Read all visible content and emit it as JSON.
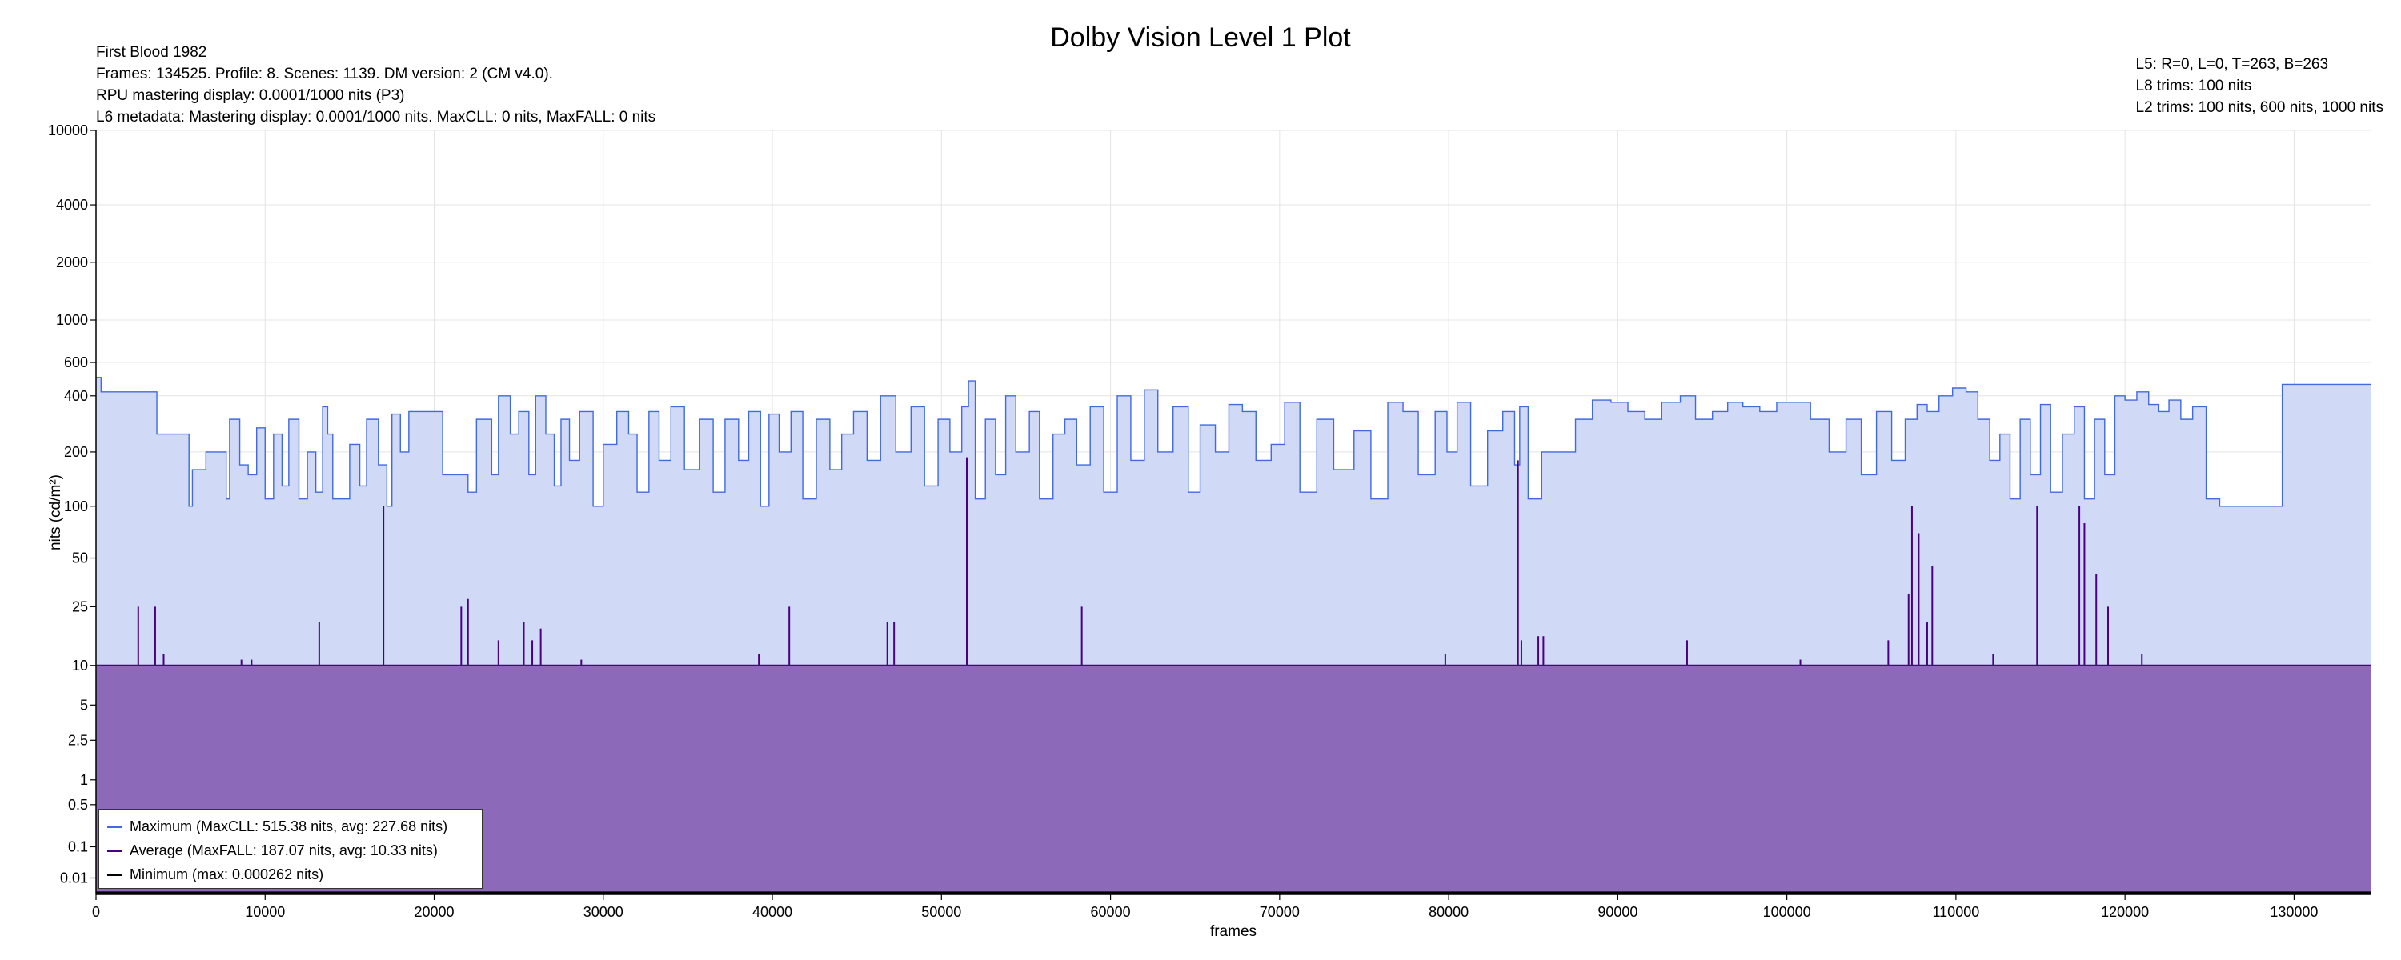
{
  "chart_data": {
    "type": "area",
    "title": "Dolby Vision Level 1 Plot",
    "info_left": [
      "First Blood 1982",
      "Frames: 134525. Profile: 8. Scenes: 1139. DM version: 2 (CM v4.0).",
      "RPU mastering display: 0.0001/1000 nits  (P3)",
      "L6 metadata: Mastering display: 0.0001/1000 nits. MaxCLL: 0 nits, MaxFALL: 0 nits"
    ],
    "info_right": [
      "L5: R=0, L=0, T=263, B=263",
      "L8 trims: 100 nits",
      "L2 trims: 100 nits, 600 nits, 1000 nits"
    ],
    "xlabel": "frames",
    "ylabel": "nits (cd/m²)",
    "xlim": [
      0,
      134525
    ],
    "x_ticks": [
      0,
      10000,
      20000,
      30000,
      40000,
      50000,
      60000,
      70000,
      80000,
      90000,
      100000,
      110000,
      120000,
      130000
    ],
    "y_scale": "pq",
    "ylim": [
      0,
      10000
    ],
    "y_ticks": [
      0.01,
      0.1,
      0.5,
      1,
      2.5,
      5,
      10,
      25,
      50,
      100,
      200,
      400,
      600,
      1000,
      2000,
      4000,
      10000
    ],
    "y_tick_labels": [
      "0.01",
      "0.1",
      "0.5",
      "1",
      "2.5",
      "5",
      "10",
      "25",
      "50",
      "100",
      "200",
      "400",
      "600",
      "1000",
      "2000",
      "4000",
      "10000"
    ],
    "grid": true,
    "legend_position": "bottom-left",
    "series": [
      {
        "name": "Maximum (MaxCLL: 515.38 nits, avg: 227.68 nits)",
        "color": "#4169e1",
        "fill": "#d0d9f6",
        "x": [
          0,
          300,
          600,
          2400,
          3600,
          4100,
          5500,
          5700,
          6500,
          7200,
          7700,
          7900,
          8500,
          9000,
          9500,
          10000,
          10500,
          11000,
          11400,
          12000,
          12500,
          13000,
          13400,
          13700,
          14000,
          15000,
          15600,
          16000,
          16700,
          17200,
          17500,
          18000,
          18500,
          19000,
          20500,
          21500,
          22000,
          22500,
          23400,
          23800,
          24500,
          25000,
          25600,
          26000,
          26600,
          27100,
          27500,
          28000,
          28600,
          29400,
          30000,
          30800,
          31500,
          32000,
          32700,
          33300,
          34000,
          34800,
          35700,
          36500,
          37200,
          38000,
          38600,
          39300,
          39800,
          40400,
          41100,
          41800,
          42600,
          43400,
          44100,
          44800,
          45600,
          46400,
          47300,
          48200,
          49000,
          49800,
          50500,
          51200,
          51600,
          52000,
          52600,
          53200,
          53800,
          54400,
          55200,
          55800,
          56600,
          57300,
          58000,
          58800,
          59600,
          60400,
          61200,
          62000,
          62800,
          63700,
          64600,
          65300,
          66200,
          67000,
          67800,
          68600,
          69500,
          70300,
          71200,
          72200,
          73200,
          74400,
          75400,
          76400,
          77300,
          78200,
          79200,
          79900,
          80500,
          81300,
          82300,
          83200,
          83900,
          84200,
          84700,
          85500,
          86400,
          87500,
          88500,
          89600,
          90600,
          91600,
          92600,
          93700,
          94600,
          95600,
          96500,
          97400,
          98400,
          99400,
          100400,
          101400,
          102500,
          103500,
          104400,
          105300,
          106200,
          107000,
          107700,
          108300,
          109000,
          109800,
          110600,
          111300,
          112000,
          112600,
          113200,
          113800,
          114400,
          115000,
          115600,
          116300,
          117000,
          117600,
          118200,
          118800,
          119400,
          120000,
          120700,
          121400,
          122000,
          122600,
          123300,
          124000,
          124800,
          125600,
          126500,
          127500,
          128500,
          129300,
          129700,
          134525
        ],
        "values": [
          500,
          420,
          420,
          420,
          250,
          250,
          100,
          160,
          200,
          200,
          110,
          300,
          170,
          150,
          270,
          110,
          250,
          130,
          300,
          110,
          200,
          120,
          350,
          250,
          110,
          220,
          130,
          300,
          170,
          100,
          320,
          200,
          330,
          330,
          150,
          150,
          120,
          300,
          150,
          400,
          250,
          330,
          150,
          400,
          250,
          130,
          300,
          180,
          330,
          100,
          220,
          330,
          250,
          120,
          330,
          180,
          350,
          160,
          300,
          120,
          300,
          180,
          330,
          100,
          320,
          200,
          330,
          110,
          300,
          160,
          250,
          330,
          180,
          400,
          200,
          350,
          130,
          300,
          200,
          350,
          480,
          110,
          300,
          150,
          400,
          200,
          330,
          110,
          250,
          300,
          170,
          350,
          120,
          400,
          180,
          430,
          200,
          350,
          120,
          280,
          200,
          360,
          330,
          180,
          220,
          370,
          120,
          300,
          160,
          260,
          110,
          370,
          330,
          150,
          330,
          200,
          370,
          130,
          260,
          330,
          170,
          350,
          110,
          200,
          200,
          300,
          380,
          370,
          330,
          300,
          370,
          400,
          300,
          330,
          370,
          350,
          330,
          370,
          370,
          300,
          200,
          300,
          150,
          330,
          180,
          300,
          360,
          330,
          400,
          440,
          420,
          300,
          180,
          250,
          110,
          300,
          150,
          360,
          120,
          250,
          350,
          110,
          300,
          150,
          400,
          380,
          420,
          360,
          330,
          380,
          300,
          350,
          110,
          100,
          100,
          100,
          100,
          460,
          460,
          460
        ],
        "step": true
      },
      {
        "name": "Average (MaxFALL: 187.07 nits, avg: 10.33 nits)",
        "color": "#4b0082",
        "fill": "#8d6ab9",
        "baseline": 10,
        "spikes": [
          [
            2500,
            25
          ],
          [
            3500,
            25
          ],
          [
            4000,
            12
          ],
          [
            8600,
            11
          ],
          [
            9200,
            11
          ],
          [
            13200,
            20
          ],
          [
            17000,
            100
          ],
          [
            21600,
            25
          ],
          [
            22000,
            28
          ],
          [
            23800,
            15
          ],
          [
            25300,
            20
          ],
          [
            25800,
            15
          ],
          [
            26300,
            18
          ],
          [
            28700,
            11
          ],
          [
            39200,
            12
          ],
          [
            41000,
            25
          ],
          [
            46800,
            20
          ],
          [
            47200,
            20
          ],
          [
            51500,
            187
          ],
          [
            58300,
            25
          ],
          [
            79800,
            12
          ],
          [
            84100,
            180
          ],
          [
            84300,
            15
          ],
          [
            85300,
            16
          ],
          [
            85600,
            16
          ],
          [
            94100,
            15
          ],
          [
            100800,
            11
          ],
          [
            106000,
            15
          ],
          [
            107200,
            30
          ],
          [
            107400,
            100
          ],
          [
            107800,
            70
          ],
          [
            108300,
            20
          ],
          [
            108600,
            45
          ],
          [
            112200,
            12
          ],
          [
            114800,
            100
          ],
          [
            117300,
            100
          ],
          [
            117600,
            80
          ],
          [
            118300,
            40
          ],
          [
            119000,
            25
          ],
          [
            121000,
            12
          ]
        ]
      },
      {
        "name": "Minimum (max: 0.000262 nits)",
        "color": "#000000",
        "value": 0.0001
      }
    ]
  }
}
